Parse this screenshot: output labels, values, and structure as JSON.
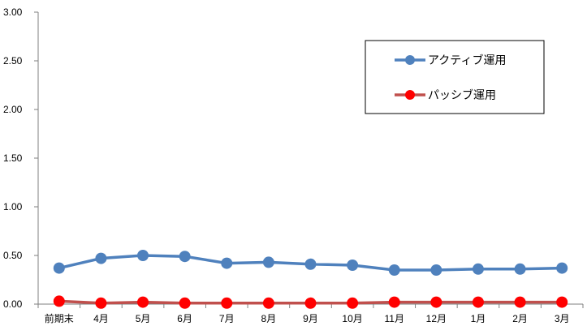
{
  "chart_data": {
    "type": "line",
    "title": "",
    "xlabel": "",
    "ylabel": "",
    "categories": [
      "前期末",
      "4月",
      "5月",
      "6月",
      "7月",
      "8月",
      "9月",
      "10月",
      "11月",
      "12月",
      "1月",
      "2月",
      "3月"
    ],
    "ylim": [
      0,
      3.0
    ],
    "yticks": [
      "0.00",
      "0.50",
      "1.00",
      "1.50",
      "2.00",
      "2.50",
      "3.00"
    ],
    "grid": false,
    "legend_position": "top-right",
    "series": [
      {
        "name": "アクティブ運用",
        "color": "#4f81bd",
        "values": [
          0.37,
          0.47,
          0.5,
          0.49,
          0.42,
          0.43,
          0.41,
          0.4,
          0.35,
          0.35,
          0.36,
          0.36,
          0.37
        ]
      },
      {
        "name": "パッシブ運用",
        "color": "#c0504d",
        "marker_color": "#ff0000",
        "values": [
          0.03,
          0.01,
          0.02,
          0.01,
          0.01,
          0.01,
          0.01,
          0.01,
          0.02,
          0.02,
          0.02,
          0.02,
          0.02
        ]
      }
    ]
  }
}
